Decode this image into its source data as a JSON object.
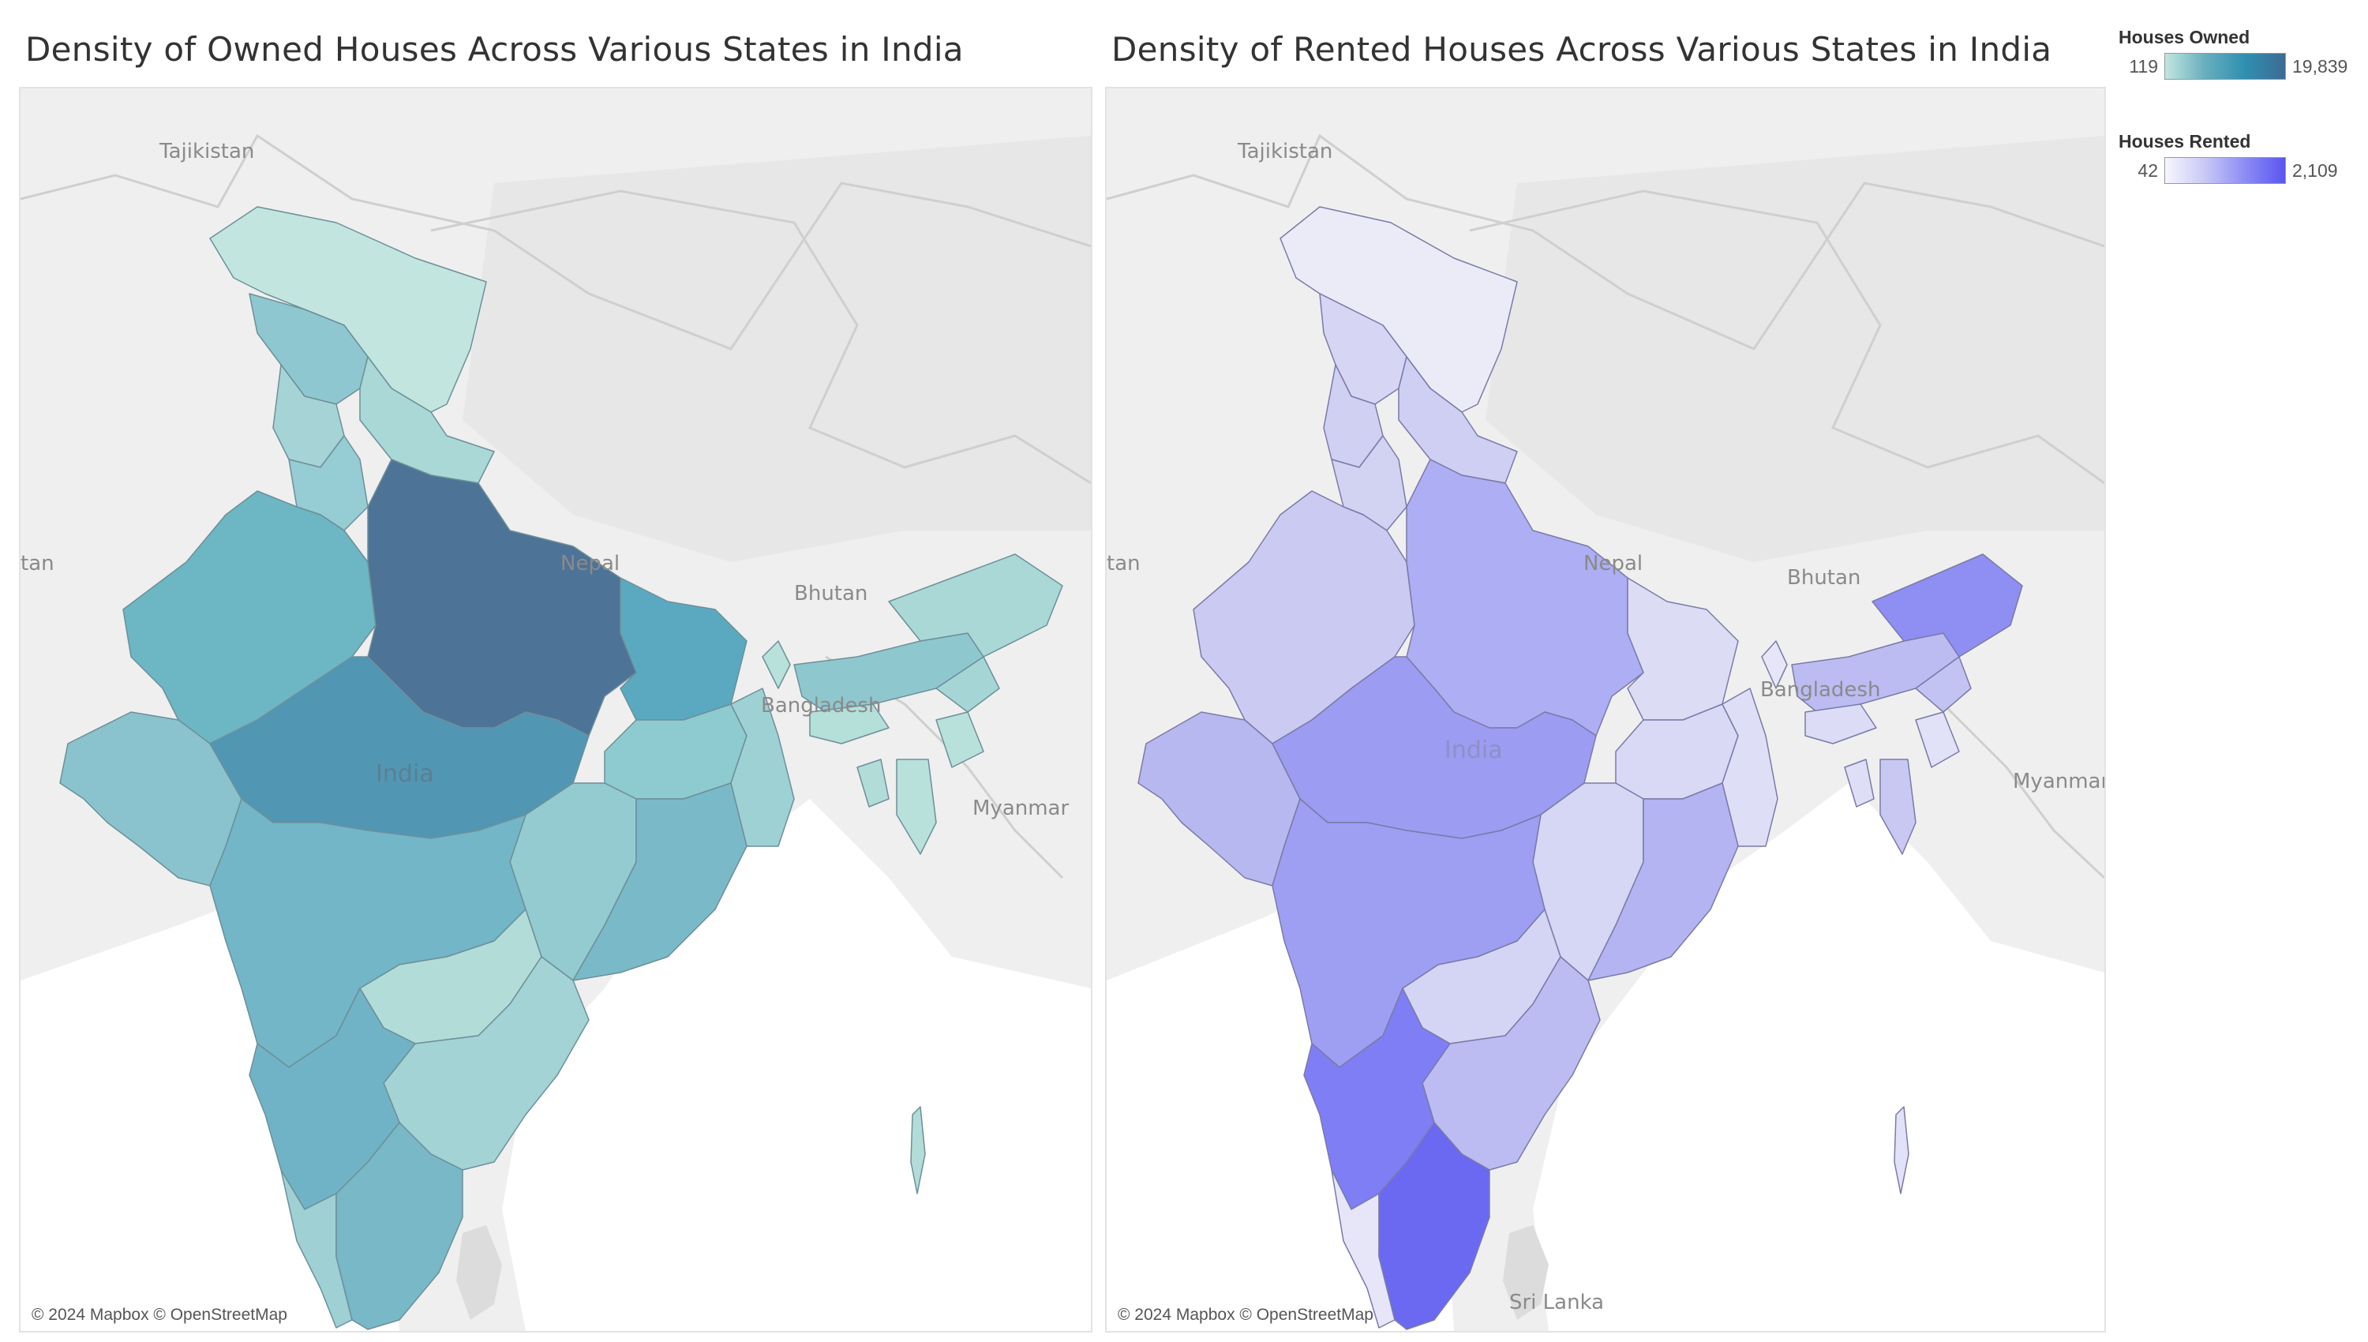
{
  "left_panel": {
    "title": "Density of Owned Houses Across Various States in India",
    "copyright": "© 2024 Mapbox © OpenStreetMap"
  },
  "right_panel": {
    "title": "Density of Rented Houses Across Various States in India",
    "copyright": "© 2024 Mapbox © OpenStreetMap"
  },
  "legend_owned": {
    "title": "Houses Owned",
    "min": "119",
    "max": "19,839",
    "colors": [
      "#c2e6df",
      "#3d6a94"
    ]
  },
  "legend_rented": {
    "title": "Houses Rented",
    "min": "42",
    "max": "2,109",
    "colors": [
      "#f6f6fd",
      "#5956f0"
    ]
  },
  "map_labels_left": {
    "tajikistan": "Tajikistan",
    "tan": "tan",
    "nepal": "Nepal",
    "bhutan": "Bhutan",
    "bangladesh": "Bangladesh",
    "india": "India",
    "myanmar": "Myanmar"
  },
  "map_labels_right": {
    "tajikistan": "Tajikistan",
    "tan": "tan",
    "nepal": "Nepal",
    "bhutan": "Bhutan",
    "bangladesh": "Bangladesh",
    "india": "India",
    "myanmar": "Myanmar",
    "sri_lanka": "Sri Lanka"
  },
  "chart_data": [
    {
      "type": "choropleth",
      "title": "Density of Owned Houses Across Various States in India",
      "measure": "Houses Owned",
      "range": [
        119,
        19839
      ],
      "color_range": [
        "#c2e6df",
        "#3d6a94"
      ]
    },
    {
      "type": "choropleth",
      "title": "Density of Rented Houses Across Various States in India",
      "measure": "Houses Rented",
      "range": [
        42,
        2109
      ],
      "color_range": [
        "#f6f6fd",
        "#5956f0"
      ]
    }
  ]
}
